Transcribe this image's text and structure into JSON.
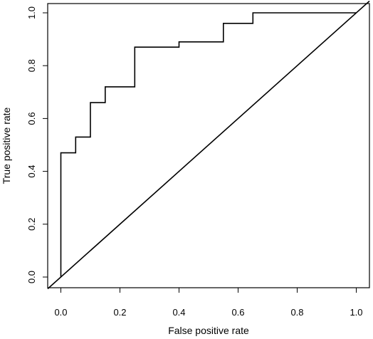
{
  "chart_data": {
    "type": "line",
    "title": "",
    "xlabel": "False positive rate",
    "ylabel": "True positive rate",
    "xlim": [
      0,
      1
    ],
    "ylim": [
      0,
      1
    ],
    "xticks": [
      0,
      0.2,
      0.4,
      0.6,
      0.8,
      1
    ],
    "yticks": [
      0,
      0.2,
      0.4,
      0.6,
      0.8,
      1
    ],
    "xtick_labels": [
      "0.0",
      "0.2",
      "0.4",
      "0.6",
      "0.8",
      "1.0"
    ],
    "ytick_labels": [
      "0.0",
      "0.2",
      "0.4",
      "0.6",
      "0.8",
      "1.0"
    ],
    "grid": false,
    "legend": "none",
    "box": true,
    "line_color": "#000000",
    "series": [
      {
        "style": "step",
        "x": [
          0,
          0,
          0.05,
          0.05,
          0.1,
          0.1,
          0.15,
          0.15,
          0.25,
          0.25,
          0.4,
          0.4,
          0.55,
          0.55,
          0.65,
          0.65,
          1.0,
          1.0
        ],
        "y": [
          0,
          0.47,
          0.47,
          0.53,
          0.53,
          0.66,
          0.66,
          0.72,
          0.72,
          0.87,
          0.87,
          0.89,
          0.89,
          0.96,
          0.96,
          1.0,
          1.0,
          1.0
        ]
      },
      {
        "style": "diagonal",
        "x": [
          0,
          1
        ],
        "y": [
          0,
          1
        ]
      }
    ]
  }
}
